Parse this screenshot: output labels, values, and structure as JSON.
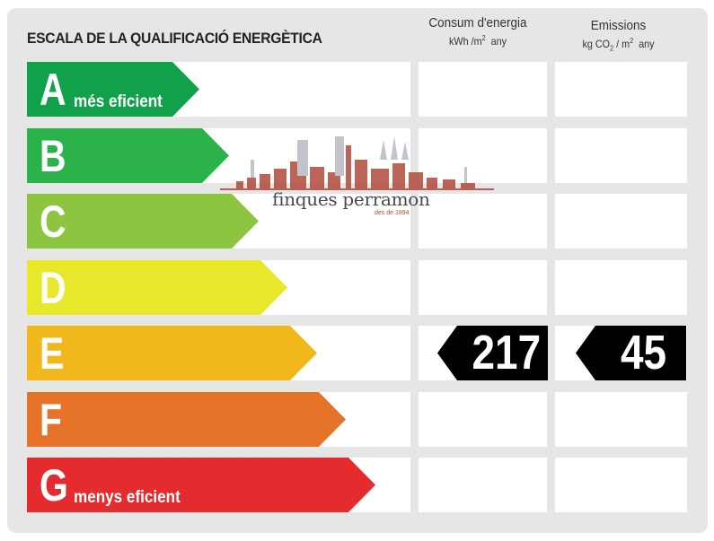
{
  "title": "ESCALA DE LA QUALIFICACIÓ ENERGÈTICA",
  "columns": {
    "consum": {
      "label": "Consum d'energia",
      "unit_prefix": "kWh /m",
      "unit_sup": "2",
      "unit_suffix": "any"
    },
    "emissions": {
      "label": "Emissions",
      "unit_prefix": "kg CO",
      "unit_sub": "2",
      "unit_mid": " / m",
      "unit_sup": "2",
      "unit_suffix": "any"
    }
  },
  "ratings": [
    {
      "letter": "A",
      "sublabel": "més eficient",
      "color": "#12a14b"
    },
    {
      "letter": "B",
      "sublabel": "",
      "color": "#2bb24b"
    },
    {
      "letter": "C",
      "sublabel": "",
      "color": "#8dc440"
    },
    {
      "letter": "D",
      "sublabel": "",
      "color": "#e8e82a"
    },
    {
      "letter": "E",
      "sublabel": "",
      "color": "#f0b81c"
    },
    {
      "letter": "F",
      "sublabel": "",
      "color": "#e57328"
    },
    {
      "letter": "G",
      "sublabel": "menys eficient",
      "color": "#e52b2d"
    }
  ],
  "current": {
    "rating": "E",
    "consum_value": "217",
    "emissions_value": "45"
  },
  "watermark": {
    "name": "finques perramon",
    "since": "des de 1894",
    "color": "#b04a3a"
  }
}
